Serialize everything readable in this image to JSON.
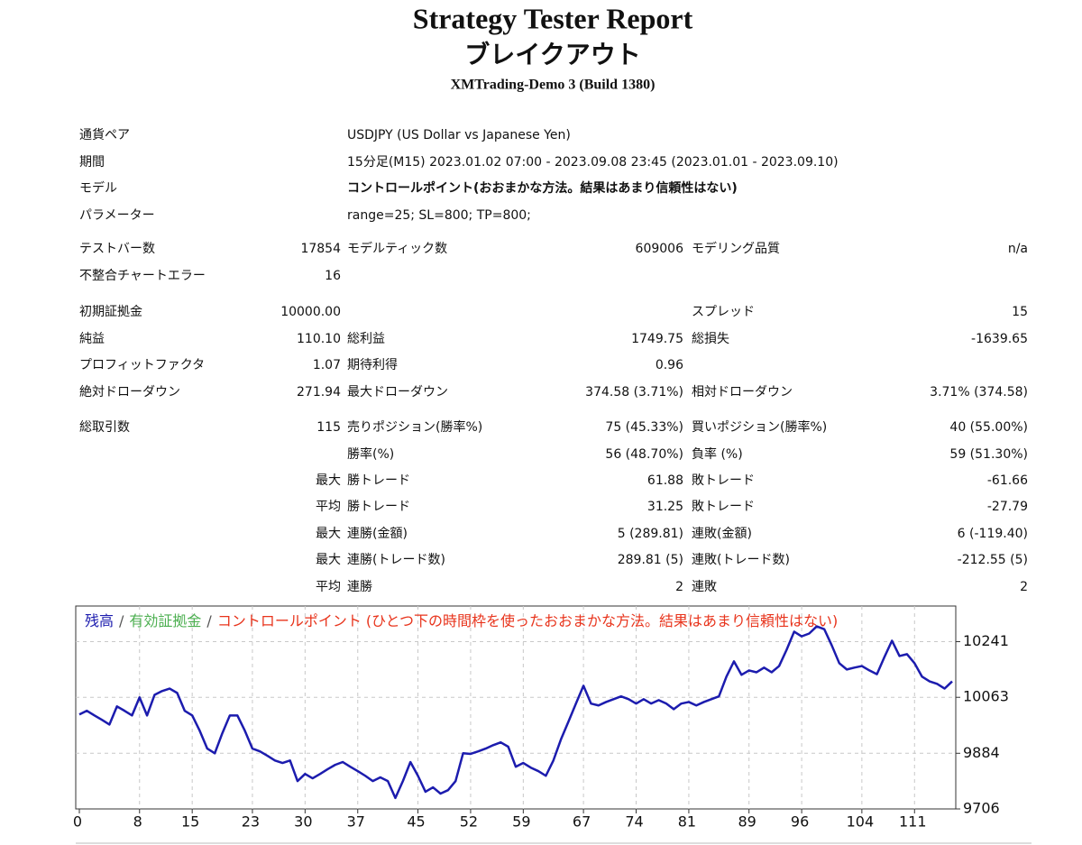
{
  "header": {
    "title": "Strategy Tester Report",
    "subtitle": "ブレイクアウト",
    "build": "XMTrading-Demo 3 (Build 1380)"
  },
  "settings": [
    {
      "label": "通貨ペア",
      "value": "USDJPY (US Dollar vs Japanese Yen)"
    },
    {
      "label": "期間",
      "value": "15分足(M15) 2023.01.02 07:00 - 2023.09.08 23:45 (2023.01.01 - 2023.09.10)"
    },
    {
      "label": "モデル",
      "value": "コントロールポイント(おおまかな方法。結果はあまり信頼性はない)",
      "value_color": "#e8341c"
    },
    {
      "label": "パラメーター",
      "value": "range=25; SL=800; TP=800;"
    }
  ],
  "stats": [
    {
      "label": "テストバー数",
      "value": "17854",
      "label2": "モデルティック数",
      "value2": "609006",
      "label3": "モデリング品質",
      "value3": "n/a"
    },
    {
      "label": "不整合チャートエラー",
      "value": "16"
    },
    {
      "label": "初期証拠金",
      "value": "10000.00",
      "label3": "スプレッド",
      "value3": "15"
    },
    {
      "label": "純益",
      "value": "110.10",
      "label2": "総利益",
      "value2": "1749.75",
      "label3": "総損失",
      "value3": "-1639.65"
    },
    {
      "label": "プロフィットファクタ",
      "value": "1.07",
      "label2": "期待利得",
      "value2": "0.96"
    },
    {
      "label": "絶対ドローダウン",
      "value": "271.94",
      "label2": "最大ドローダウン",
      "value2": "374.58 (3.71%)",
      "label3": "相対ドローダウン",
      "value3": "3.71% (374.58)"
    },
    {
      "label": "総取引数",
      "value": "115",
      "label2": "売りポジション(勝率%)",
      "value2": "75 (45.33%)",
      "label3": "買いポジション(勝率%)",
      "value3": "40 (55.00%)"
    },
    {
      "label2": "勝率(%)",
      "value2": "56 (48.70%)",
      "label3": "負率 (%)",
      "value3": "59 (51.30%)"
    },
    {
      "value": "最大",
      "label2": "勝トレード",
      "value2": "61.88",
      "label3": "敗トレード",
      "value3": "-61.66"
    },
    {
      "value": "平均",
      "label2": "勝トレード",
      "value2": "31.25",
      "label3": "敗トレード",
      "value3": "-27.79"
    },
    {
      "value": "最大",
      "label2": "連勝(金額)",
      "value2": "5 (289.81)",
      "label3": "連敗(金額)",
      "value3": "6 (-119.40)"
    },
    {
      "value": "最大",
      "label2": "連勝(トレード数)",
      "value2": "289.81 (5)",
      "label3": "連敗(トレード数)",
      "value3": "-212.55 (5)"
    },
    {
      "value": "平均",
      "label2": "連勝",
      "value2": "2",
      "label3": "連敗",
      "value3": "2"
    }
  ],
  "chart_data": {
    "type": "line",
    "series": [
      {
        "name": "残高",
        "color": "#1c1cae",
        "values": [
          10008,
          10020,
          10005,
          9991,
          9976,
          10034,
          10020,
          10005,
          10063,
          10005,
          10071,
          10083,
          10091,
          10077,
          10020,
          10005,
          9956,
          9899,
          9884,
          9948,
          10005,
          10005,
          9956,
          9899,
          9890,
          9876,
          9861,
          9853,
          9861,
          9795,
          9818,
          9804,
          9818,
          9833,
          9847,
          9856,
          9841,
          9827,
          9812,
          9795,
          9807,
          9795,
          9741,
          9795,
          9856,
          9812,
          9761,
          9775,
          9755,
          9766,
          9795,
          9884,
          9882,
          9890,
          9899,
          9910,
          9919,
          9905,
          9841,
          9853,
          9838,
          9827,
          9812,
          9861,
          9928,
          9985,
          10043,
          10100,
          10043,
          10037,
          10048,
          10057,
          10066,
          10057,
          10043,
          10057,
          10043,
          10054,
          10043,
          10025,
          10043,
          10048,
          10037,
          10048,
          10057,
          10066,
          10129,
          10178,
          10135,
          10149,
          10143,
          10158,
          10143,
          10163,
          10215,
          10273,
          10258,
          10267,
          10290,
          10281,
          10229,
          10172,
          10152,
          10158,
          10163,
          10149,
          10137,
          10192,
          10244,
          10195,
          10201,
          10172,
          10129,
          10114,
          10106,
          10091,
          10114
        ]
      }
    ],
    "legend_separator": "/",
    "legend_notes": [
      {
        "text": "有効証拠金",
        "color": "#4caf50"
      },
      {
        "text": "コントロールポイント (ひとつ下の時間枠を使ったおおまかな方法。結果はあまり信頼性はない)",
        "color": "#e8341c"
      }
    ],
    "xlim": [
      0,
      116
    ],
    "xticks": [
      0,
      8,
      15,
      23,
      30,
      37,
      45,
      52,
      59,
      67,
      74,
      81,
      89,
      96,
      104,
      111
    ],
    "ylim": [
      9706,
      10355
    ],
    "yticks": [
      9706,
      9884,
      10063,
      10241
    ],
    "grid": true
  }
}
